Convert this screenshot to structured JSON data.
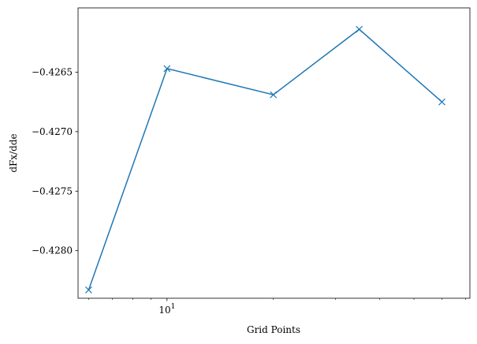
{
  "chart_data": {
    "type": "line",
    "title": "",
    "xlabel": "Grid Points",
    "ylabel": "dFx/dde",
    "xscale": "log",
    "xlim": [
      5.6,
      72
    ],
    "ylim": [
      -0.4284,
      -0.42596
    ],
    "grid": false,
    "legend": "none",
    "marker": "x",
    "line_color": "#1f77b4",
    "x_tick_labels": [
      {
        "value": 10,
        "base": "10",
        "exp": "1"
      }
    ],
    "y_ticks": [
      {
        "value": -0.4265,
        "label": "−0.4265"
      },
      {
        "value": -0.427,
        "label": "−0.4270"
      },
      {
        "value": -0.4275,
        "label": "−0.4275"
      },
      {
        "value": -0.428,
        "label": "−0.4280"
      }
    ],
    "x": [
      6,
      10,
      20,
      35,
      60
    ],
    "y": [
      -0.42833,
      -0.42647,
      -0.42669,
      -0.42614,
      -0.42675
    ]
  }
}
